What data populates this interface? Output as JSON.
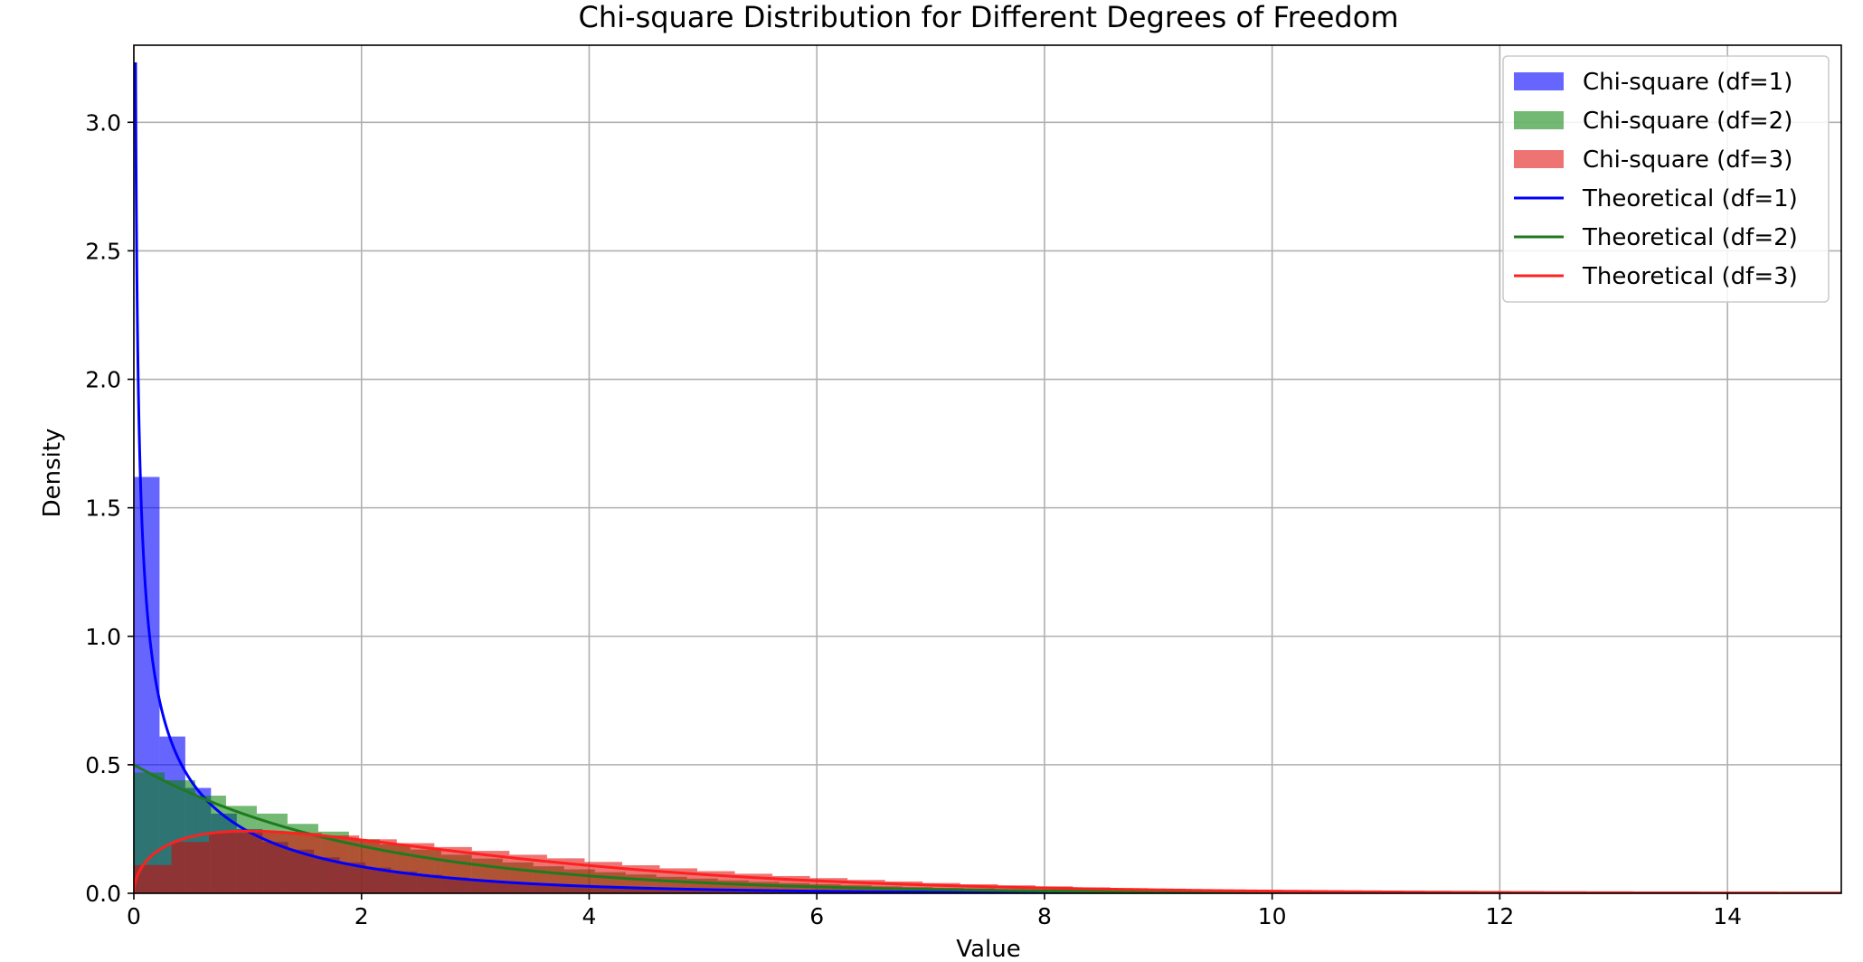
{
  "chart_data": {
    "type": "histogram+line",
    "title": "Chi-square Distribution for Different Degrees of Freedom",
    "xlabel": "Value",
    "ylabel": "Density",
    "xlim": [
      0,
      15
    ],
    "ylim": [
      0,
      3.3
    ],
    "xticks": [
      0,
      2,
      4,
      6,
      8,
      10,
      12,
      14
    ],
    "yticks": [
      0.0,
      0.5,
      1.0,
      1.5,
      2.0,
      2.5,
      3.0
    ],
    "grid": true,
    "legend_position": "top-right",
    "histograms": [
      {
        "name": "Chi-square (df=1)",
        "color": "#0000ff",
        "alpha": 0.6,
        "bin_width": 0.226,
        "densities": [
          1.62,
          0.61,
          0.41,
          0.31,
          0.25,
          0.2,
          0.17,
          0.14,
          0.12,
          0.1,
          0.085,
          0.072,
          0.062,
          0.053,
          0.045,
          0.039,
          0.033,
          0.028,
          0.024,
          0.02,
          0.017,
          0.015,
          0.013,
          0.011,
          0.009,
          0.008,
          0.007,
          0.006,
          0.005,
          0.004,
          0.0035,
          0.003,
          0.0025,
          0.002,
          0.0017,
          0.0014,
          0.0012,
          0.001,
          0.0008,
          0.0007
        ]
      },
      {
        "name": "Chi-square (df=2)",
        "color": "#008000",
        "alpha": 0.55,
        "bin_width": 0.27,
        "densities": [
          0.47,
          0.44,
          0.38,
          0.34,
          0.31,
          0.27,
          0.24,
          0.21,
          0.19,
          0.17,
          0.15,
          0.135,
          0.12,
          0.105,
          0.093,
          0.082,
          0.073,
          0.064,
          0.057,
          0.05,
          0.044,
          0.039,
          0.035,
          0.031,
          0.027,
          0.024,
          0.021,
          0.019,
          0.016,
          0.014,
          0.013,
          0.011,
          0.01,
          0.009,
          0.008,
          0.007,
          0.006,
          0.005,
          0.0045,
          0.004,
          0.0035,
          0.003,
          0.0027,
          0.0024,
          0.0021,
          0.0018
        ]
      },
      {
        "name": "Chi-square (df=3)",
        "color": "#e00000",
        "alpha": 0.55,
        "bin_width": 0.33,
        "densities": [
          0.11,
          0.2,
          0.235,
          0.24,
          0.235,
          0.225,
          0.21,
          0.195,
          0.18,
          0.165,
          0.15,
          0.136,
          0.122,
          0.109,
          0.097,
          0.086,
          0.076,
          0.067,
          0.059,
          0.052,
          0.046,
          0.04,
          0.035,
          0.031,
          0.027,
          0.023,
          0.02,
          0.018,
          0.015,
          0.013,
          0.012,
          0.01,
          0.009,
          0.008,
          0.007,
          0.006,
          0.005,
          0.0045,
          0.004,
          0.0035,
          0.003,
          0.0026,
          0.0022,
          0.0019,
          0.0016
        ]
      }
    ],
    "lines": [
      {
        "name": "Theoretical (df=1)",
        "df": 1,
        "color": "#0000ff"
      },
      {
        "name": "Theoretical (df=2)",
        "df": 2,
        "color": "#1f7a1f"
      },
      {
        "name": "Theoretical (df=3)",
        "df": 3,
        "color": "#ff2020"
      }
    ],
    "legend": [
      {
        "label": "Chi-square (df=1)",
        "kind": "patch",
        "color": "#0000ff",
        "alpha": 0.6
      },
      {
        "label": "Chi-square (df=2)",
        "kind": "patch",
        "color": "#008000",
        "alpha": 0.55
      },
      {
        "label": "Chi-square (df=3)",
        "kind": "patch",
        "color": "#e00000",
        "alpha": 0.55
      },
      {
        "label": "Theoretical (df=1)",
        "kind": "line",
        "color": "#0000ff"
      },
      {
        "label": "Theoretical (df=2)",
        "kind": "line",
        "color": "#1f7a1f"
      },
      {
        "label": "Theoretical (df=3)",
        "kind": "line",
        "color": "#ff2020"
      }
    ]
  }
}
